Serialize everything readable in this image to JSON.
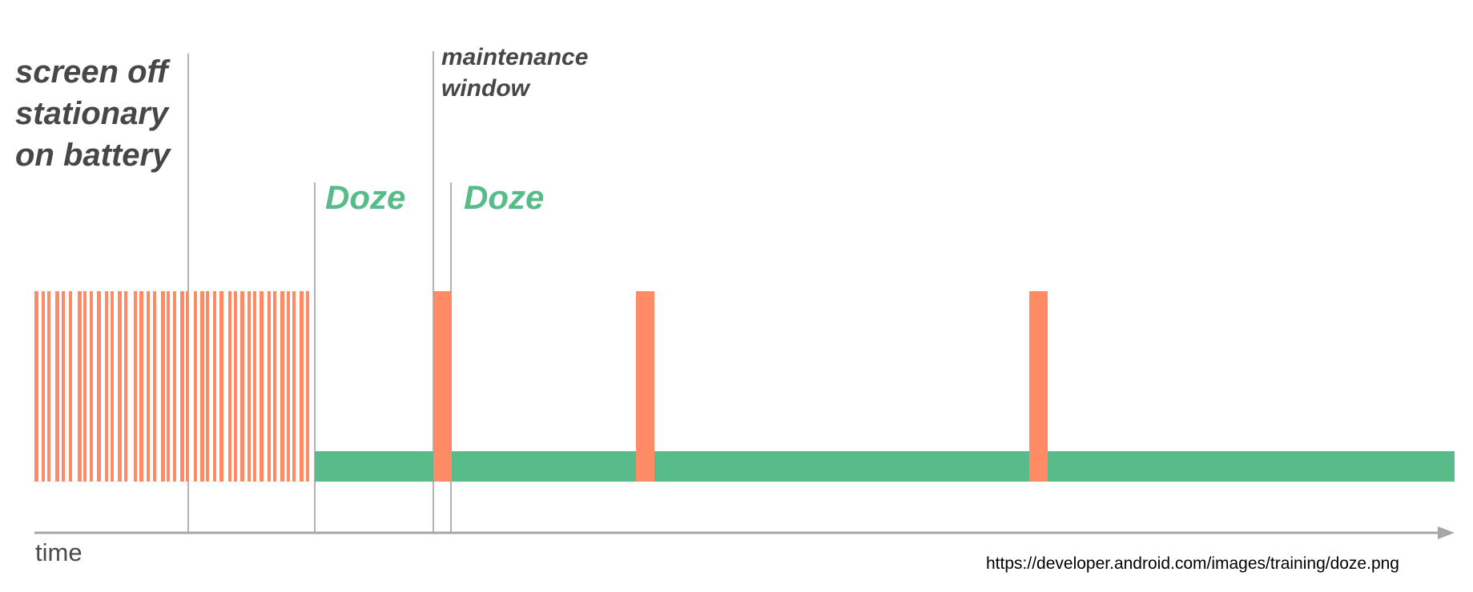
{
  "labels": {
    "conditions": [
      "screen off",
      "stationary",
      "on battery"
    ],
    "maintenance": [
      "maintenance",
      "window"
    ],
    "doze_1": "Doze",
    "doze_2": "Doze",
    "axis": "time",
    "source_url": "https://developer.android.com/images/training/doze.png"
  },
  "colors": {
    "activity": "#ff8a65",
    "doze": "#57bb8a",
    "marker": "#b3b3b3",
    "axis": "#a6a6a6",
    "text_dark": "#474747"
  },
  "timeline": {
    "frequent_activity": "dense short bursts of activity before and shortly after screen off",
    "doze_bar": "continuous Doze period with periodic maintenance windows",
    "maintenance_windows": 3
  }
}
